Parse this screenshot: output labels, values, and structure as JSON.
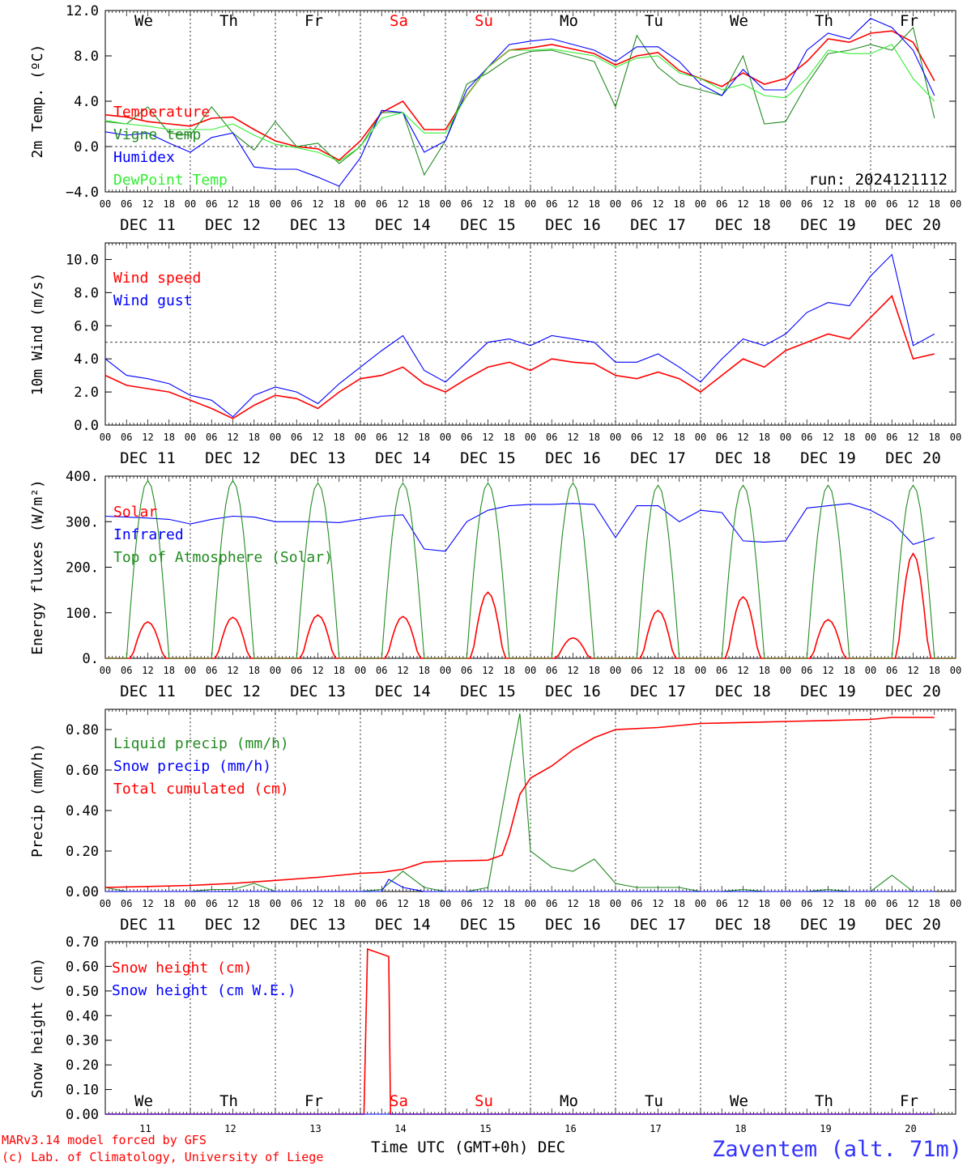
{
  "meta": {
    "run": "run: 2024121112",
    "credit1": "MARv3.14 model forced by GFS",
    "credit2": "(c) Lab. of Climatology, University of Liege",
    "station": "Zaventem (alt. 71m)",
    "time_label": "Time UTC (GMT+0h) DEC"
  },
  "days": {
    "dates": [
      "DEC 11",
      "DEC 12",
      "DEC 13",
      "DEC 14",
      "DEC 15",
      "DEC 16",
      "DEC 17",
      "DEC 18",
      "DEC 19",
      "DEC 20"
    ],
    "short": [
      "11",
      "12",
      "13",
      "14",
      "15",
      "16",
      "17",
      "18",
      "19",
      "20"
    ],
    "weekdays": [
      "We",
      "Th",
      "Fr",
      "Sa",
      "Su",
      "Mo",
      "Tu",
      "We",
      "Th",
      "Fr"
    ],
    "weekend_color": "#ff0000",
    "hours": [
      "00",
      "06",
      "12",
      "18"
    ]
  },
  "colors": {
    "red": "#ff0000",
    "darkgreen": "#228b22",
    "blue": "#0000ff",
    "lightgreen": "#33ee33"
  },
  "chart_data": [
    {
      "type": "line",
      "ylabel": "2m Temp. (oC)",
      "ylim": [
        -4,
        12
      ],
      "yticks": [
        "-4.0",
        "0.0",
        "4.0",
        "8.0",
        "12.0"
      ],
      "reference_line": 0,
      "x_unit": "hours since DEC 11 00 UTC",
      "series": [
        {
          "name": "Temperature",
          "color": "red",
          "x": [
            0,
            6,
            12,
            18,
            24,
            30,
            36,
            42,
            48,
            54,
            60,
            66,
            72,
            78,
            84,
            90,
            96,
            102,
            108,
            114,
            120,
            126,
            132,
            138,
            144,
            150,
            156,
            162,
            168,
            174,
            180,
            186,
            192,
            198,
            204,
            210,
            216,
            222,
            228,
            234
          ],
          "values": [
            2.8,
            2.6,
            2.2,
            2.0,
            1.8,
            2.5,
            2.6,
            1.5,
            0.5,
            0.0,
            -0.2,
            -1.2,
            0.5,
            3.0,
            4.0,
            1.5,
            1.5,
            4.5,
            7.0,
            8.5,
            8.7,
            9.0,
            8.6,
            8.2,
            7.2,
            8.0,
            8.3,
            6.7,
            6.0,
            5.3,
            6.5,
            5.5,
            6.0,
            7.5,
            9.5,
            9.2,
            10.0,
            10.2,
            9.2,
            5.8
          ]
        },
        {
          "name": "Vigne temp",
          "color": "darkgreen",
          "x": [
            0,
            6,
            12,
            18,
            24,
            30,
            36,
            42,
            48,
            54,
            60,
            66,
            72,
            78,
            84,
            90,
            96,
            102,
            108,
            114,
            120,
            126,
            132,
            138,
            144,
            150,
            156,
            162,
            168,
            174,
            180,
            186,
            192,
            198,
            204,
            210,
            216,
            222,
            228,
            234
          ],
          "values": [
            2.2,
            2.0,
            3.5,
            1.2,
            1.0,
            3.5,
            1.2,
            -0.3,
            2.2,
            0.0,
            0.3,
            -1.5,
            0.0,
            3.0,
            3.0,
            -2.5,
            0.5,
            5.5,
            6.5,
            7.8,
            8.4,
            8.5,
            8.0,
            7.5,
            3.5,
            9.8,
            7.0,
            5.5,
            5.0,
            4.5,
            8.0,
            2.0,
            2.2,
            5.5,
            8.2,
            8.5,
            9.0,
            8.5,
            10.5,
            2.5
          ]
        },
        {
          "name": "Humidex",
          "color": "blue",
          "x": [
            0,
            6,
            12,
            18,
            24,
            30,
            36,
            42,
            48,
            54,
            60,
            66,
            72,
            78,
            84,
            90,
            96,
            102,
            108,
            114,
            120,
            126,
            132,
            138,
            144,
            150,
            156,
            162,
            168,
            174,
            180,
            186,
            192,
            198,
            204,
            210,
            216,
            222,
            228,
            234
          ],
          "values": [
            1.3,
            1.0,
            1.2,
            0.3,
            -0.5,
            0.8,
            1.2,
            -1.8,
            -2.0,
            -2.0,
            -2.7,
            -3.5,
            -1.0,
            3.2,
            3.0,
            -0.5,
            0.5,
            5.0,
            7.0,
            9.0,
            9.3,
            9.5,
            9.0,
            8.5,
            7.5,
            8.8,
            8.8,
            7.5,
            5.5,
            4.5,
            6.8,
            5.0,
            5.0,
            8.5,
            10.0,
            9.5,
            11.3,
            10.5,
            8.5,
            4.5
          ]
        },
        {
          "name": "DewPoint Temp",
          "color": "lightgreen",
          "x": [
            0,
            6,
            12,
            18,
            24,
            30,
            36,
            42,
            48,
            54,
            60,
            66,
            72,
            78,
            84,
            90,
            96,
            102,
            108,
            114,
            120,
            126,
            132,
            138,
            144,
            150,
            156,
            162,
            168,
            174,
            180,
            186,
            192,
            198,
            204,
            210,
            216,
            222,
            228,
            234
          ],
          "values": [
            2.3,
            2.0,
            1.8,
            1.5,
            1.5,
            1.5,
            2.0,
            1.0,
            0.2,
            -0.1,
            -0.5,
            -1.3,
            0.0,
            2.5,
            3.0,
            1.2,
            1.2,
            4.5,
            7.0,
            8.5,
            8.5,
            8.6,
            8.3,
            8.0,
            7.0,
            7.8,
            8.0,
            6.5,
            6.0,
            5.0,
            5.5,
            4.5,
            4.3,
            6.0,
            8.5,
            8.2,
            8.2,
            9.0,
            6.0,
            4.0
          ]
        }
      ]
    },
    {
      "type": "line",
      "ylabel": "10m Wind (m/s)",
      "ylim": [
        0,
        11
      ],
      "yticks": [
        "0.0",
        "2.0",
        "4.0",
        "6.0",
        "8.0",
        "10.0"
      ],
      "reference_line": 5,
      "series": [
        {
          "name": "Wind speed",
          "color": "red",
          "x": [
            0,
            6,
            12,
            18,
            24,
            30,
            36,
            42,
            48,
            54,
            60,
            66,
            72,
            78,
            84,
            90,
            96,
            102,
            108,
            114,
            120,
            126,
            132,
            138,
            144,
            150,
            156,
            162,
            168,
            174,
            180,
            186,
            192,
            198,
            204,
            210,
            216,
            222,
            228,
            234
          ],
          "values": [
            3.0,
            2.4,
            2.2,
            2.0,
            1.5,
            1.0,
            0.4,
            1.2,
            1.8,
            1.6,
            1.0,
            2.0,
            2.8,
            3.0,
            3.5,
            2.5,
            2.0,
            2.8,
            3.5,
            3.8,
            3.3,
            4.0,
            3.8,
            3.7,
            3.0,
            2.8,
            3.2,
            2.8,
            2.0,
            3.0,
            4.0,
            3.5,
            4.5,
            5.0,
            5.5,
            5.2,
            6.5,
            7.8,
            4.0,
            4.3
          ]
        },
        {
          "name": "Wind gust",
          "color": "blue",
          "x": [
            0,
            6,
            12,
            18,
            24,
            30,
            36,
            42,
            48,
            54,
            60,
            66,
            72,
            78,
            84,
            90,
            96,
            102,
            108,
            114,
            120,
            126,
            132,
            138,
            144,
            150,
            156,
            162,
            168,
            174,
            180,
            186,
            192,
            198,
            204,
            210,
            216,
            222,
            228,
            234
          ],
          "values": [
            4.0,
            3.0,
            2.8,
            2.5,
            1.8,
            1.5,
            0.5,
            1.8,
            2.3,
            2.0,
            1.3,
            2.5,
            3.5,
            4.5,
            5.4,
            3.3,
            2.6,
            3.8,
            5.0,
            5.2,
            4.8,
            5.4,
            5.2,
            5.0,
            3.8,
            3.8,
            4.3,
            3.5,
            2.6,
            4.0,
            5.2,
            4.8,
            5.5,
            6.8,
            7.4,
            7.2,
            9.0,
            10.3,
            4.8,
            5.5
          ]
        }
      ]
    },
    {
      "type": "line",
      "ylabel": "Energy fluxes (W/m2)",
      "ylim": [
        0,
        400
      ],
      "yticks": [
        "0.",
        "100.",
        "200.",
        "300.",
        "400."
      ],
      "series": [
        {
          "name": "Solar",
          "color": "red",
          "peaks": [
            80,
            90,
            95,
            92,
            145,
            45,
            105,
            135,
            85,
            230
          ]
        },
        {
          "name": "Infrared",
          "color": "blue",
          "x": [
            0,
            6,
            12,
            18,
            24,
            30,
            36,
            42,
            48,
            54,
            60,
            66,
            72,
            78,
            84,
            90,
            96,
            102,
            108,
            114,
            120,
            126,
            132,
            138,
            144,
            150,
            156,
            162,
            168,
            174,
            180,
            186,
            192,
            198,
            204,
            210,
            216,
            222,
            228,
            234
          ],
          "values": [
            312,
            310,
            308,
            305,
            295,
            305,
            312,
            310,
            300,
            300,
            300,
            298,
            305,
            312,
            315,
            240,
            235,
            300,
            325,
            335,
            338,
            338,
            340,
            338,
            265,
            335,
            335,
            300,
            325,
            320,
            258,
            255,
            258,
            330,
            335,
            340,
            325,
            300,
            250,
            265
          ]
        },
        {
          "name": "Top of Atmosphere (Solar)",
          "color": "darkgreen",
          "peaks": [
            390,
            390,
            385,
            385,
            385,
            385,
            380,
            380,
            380,
            380
          ]
        }
      ]
    },
    {
      "type": "line",
      "ylabel": "Precip (mm/h)",
      "ylim": [
        0,
        0.9
      ],
      "yticks": [
        "0.00",
        "0.20",
        "0.40",
        "0.60",
        "0.80"
      ],
      "series": [
        {
          "name": "Liquid precip (mm/h)",
          "color": "darkgreen",
          "x": [
            0,
            6,
            12,
            18,
            24,
            30,
            36,
            42,
            48,
            54,
            60,
            66,
            72,
            78,
            84,
            90,
            96,
            102,
            108,
            114,
            117,
            120,
            126,
            132,
            138,
            144,
            150,
            156,
            162,
            168,
            174,
            180,
            186,
            192,
            198,
            204,
            210,
            216,
            222,
            228,
            234
          ],
          "values": [
            0.02,
            0.0,
            0.0,
            0.0,
            0.0,
            0.01,
            0.01,
            0.04,
            0.0,
            0.0,
            0.0,
            0.0,
            0.0,
            0.01,
            0.1,
            0.02,
            0.0,
            0.0,
            0.02,
            0.6,
            0.88,
            0.2,
            0.12,
            0.1,
            0.16,
            0.04,
            0.02,
            0.02,
            0.02,
            0.0,
            0.0,
            0.01,
            0.0,
            0.0,
            0.0,
            0.01,
            0.0,
            0.0,
            0.08,
            0.0,
            0.0
          ]
        },
        {
          "name": "Snow precip (mm/h)",
          "color": "blue",
          "x": [
            0,
            6,
            12,
            18,
            24,
            30,
            36,
            42,
            48,
            54,
            60,
            66,
            72,
            78,
            80,
            84,
            90,
            96,
            234
          ],
          "values": [
            0,
            0,
            0,
            0,
            0,
            0,
            0,
            0,
            0,
            0,
            0,
            0,
            0,
            0,
            0.06,
            0.02,
            0,
            0,
            0
          ]
        },
        {
          "name": "Total cumulated (cm)",
          "color": "red",
          "x": [
            0,
            12,
            24,
            36,
            48,
            60,
            72,
            78,
            84,
            90,
            96,
            108,
            112,
            114,
            117,
            120,
            126,
            132,
            138,
            144,
            156,
            168,
            180,
            192,
            204,
            216,
            222,
            234
          ],
          "values": [
            0.02,
            0.025,
            0.03,
            0.04,
            0.055,
            0.07,
            0.09,
            0.095,
            0.11,
            0.145,
            0.15,
            0.155,
            0.18,
            0.28,
            0.48,
            0.56,
            0.62,
            0.7,
            0.76,
            0.8,
            0.81,
            0.83,
            0.835,
            0.84,
            0.845,
            0.85,
            0.86,
            0.86
          ]
        }
      ]
    },
    {
      "type": "line",
      "ylabel": "Snow height (cm)",
      "ylim": [
        0,
        0.7
      ],
      "yticks": [
        "0.00",
        "0.10",
        "0.20",
        "0.30",
        "0.40",
        "0.50",
        "0.60",
        "0.70"
      ],
      "series": [
        {
          "name": "Snow height (cm)",
          "color": "red",
          "x": [
            0,
            73,
            74,
            80,
            80.5,
            234
          ],
          "values": [
            0,
            0,
            0.67,
            0.64,
            0,
            0
          ]
        },
        {
          "name": "Snow height (cm W.E.)",
          "color": "blue",
          "x": [
            0,
            234
          ],
          "values": [
            0,
            0
          ]
        }
      ]
    }
  ]
}
